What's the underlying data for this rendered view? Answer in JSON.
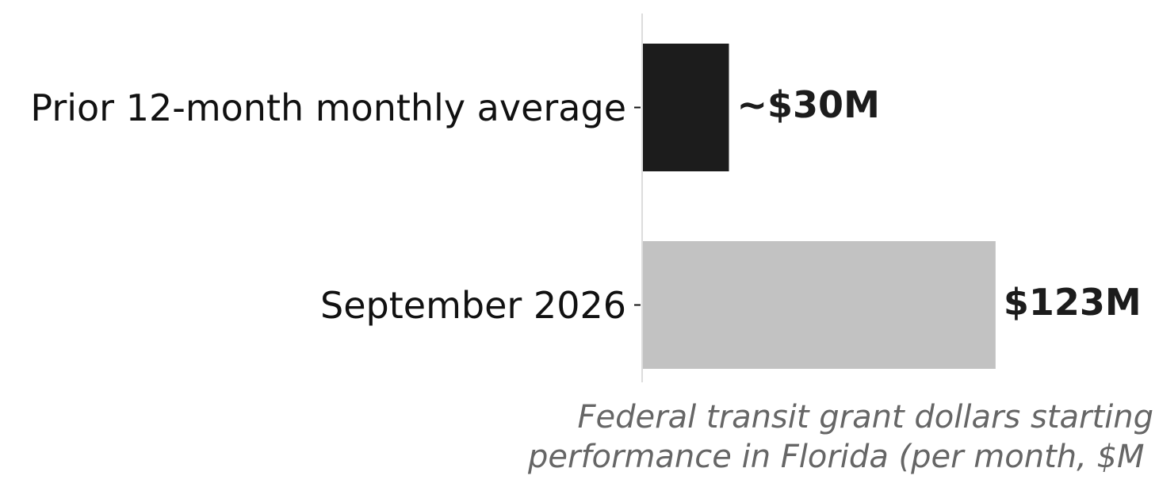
{
  "chart_data": {
    "type": "barh",
    "categories": [
      "Prior 12-month monthly average",
      "September 2026"
    ],
    "values": [
      30,
      123
    ],
    "value_labels": [
      "~$30M",
      "$123M"
    ],
    "colors": [
      "#1c1c1c",
      "#c2c2c2"
    ],
    "xlim": [
      0,
      180
    ],
    "xlabel": [
      "Federal transit grant dollars starting",
      "performance in Florida (per month, $M"
    ]
  }
}
